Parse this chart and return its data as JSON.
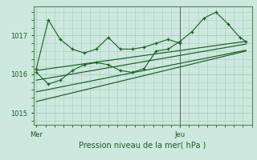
{
  "bg_color": "#cce8df",
  "grid_color": "#aaccbb",
  "line_color": "#1a6020",
  "title": "Pression niveau de la mer( hPa )",
  "xlabel_mer": "Mer",
  "xlabel_jeu": "Jeu",
  "yticks": [
    1015,
    1016,
    1017
  ],
  "ylim": [
    1014.7,
    1017.75
  ],
  "xlim": [
    -0.5,
    36
  ],
  "x_mer": 0,
  "x_jeu": 24,
  "series0_x": [
    0,
    2,
    4,
    6,
    8,
    10,
    12,
    14,
    16,
    18,
    20,
    22,
    24
  ],
  "series0_y": [
    1016.15,
    1017.4,
    1016.9,
    1016.65,
    1016.55,
    1016.65,
    1016.95,
    1016.65,
    1016.65,
    1016.7,
    1016.8,
    1016.9,
    1016.8
  ],
  "series4_x": [
    0,
    2,
    4,
    6,
    8,
    10,
    12,
    14,
    16,
    18,
    20,
    22,
    24,
    26,
    28,
    30,
    32,
    34,
    35
  ],
  "series4_y": [
    1016.05,
    1015.75,
    1015.85,
    1016.1,
    1016.25,
    1016.3,
    1016.25,
    1016.1,
    1016.05,
    1016.15,
    1016.6,
    1016.65,
    1016.85,
    1017.1,
    1017.45,
    1017.6,
    1017.3,
    1016.95,
    1016.85
  ],
  "smooth1": {
    "x": [
      0,
      35
    ],
    "y": [
      1016.1,
      1016.85
    ]
  },
  "smooth2": {
    "x": [
      0,
      35
    ],
    "y": [
      1015.85,
      1016.78
    ]
  },
  "smooth3": {
    "x": [
      0,
      35
    ],
    "y": [
      1015.55,
      1016.62
    ]
  },
  "smooth4": {
    "x": [
      0,
      35
    ],
    "y": [
      1015.3,
      1016.6
    ]
  },
  "x_jeu_line": 24
}
